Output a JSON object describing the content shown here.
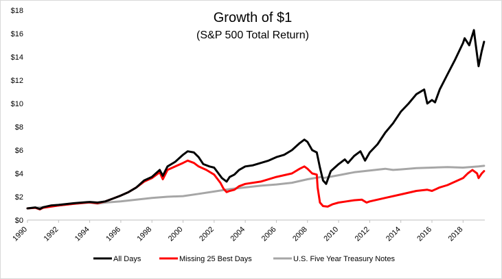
{
  "chart_data": {
    "type": "line",
    "title": "Growth of $1",
    "subtitle": "(S&P 500 Total Return)",
    "xlabel": "",
    "ylabel": "",
    "xlim": [
      1990,
      2019.4
    ],
    "ylim": [
      0,
      18
    ],
    "x_ticks": [
      1990,
      1992,
      1994,
      1996,
      1998,
      2000,
      2002,
      2004,
      2006,
      2008,
      2010,
      2012,
      2014,
      2016,
      2018
    ],
    "x_tick_labels": [
      "1990",
      "1992",
      "1994",
      "1996",
      "1998",
      "2000",
      "2002",
      "2004",
      "2006",
      "2008",
      "2010",
      "2012",
      "2014",
      "2016",
      "2018"
    ],
    "y_ticks": [
      0,
      2,
      4,
      6,
      8,
      10,
      12,
      14,
      16,
      18
    ],
    "y_tick_labels": [
      "$0",
      "$2",
      "$4",
      "$6",
      "$8",
      "$10",
      "$12",
      "$14",
      "$16",
      "$18"
    ],
    "grid": false,
    "legend_position": "bottom",
    "series": [
      {
        "name": "All Days",
        "color": "#000000",
        "x": [
          1990.0,
          1990.5,
          1990.8,
          1991.0,
          1991.5,
          1992.0,
          1993.0,
          1994.0,
          1994.5,
          1995.0,
          1995.5,
          1996.0,
          1996.5,
          1997.0,
          1997.5,
          1998.0,
          1998.5,
          1998.7,
          1999.0,
          1999.5,
          2000.0,
          2000.3,
          2000.7,
          2001.0,
          2001.3,
          2001.7,
          2002.0,
          2002.5,
          2002.8,
          2003.0,
          2003.3,
          2003.6,
          2004.0,
          2004.5,
          2005.0,
          2005.5,
          2006.0,
          2006.5,
          2007.0,
          2007.5,
          2007.8,
          2008.0,
          2008.3,
          2008.6,
          2008.8,
          2009.0,
          2009.2,
          2009.5,
          2010.0,
          2010.4,
          2010.6,
          2011.0,
          2011.4,
          2011.7,
          2012.0,
          2012.5,
          2013.0,
          2013.5,
          2014.0,
          2014.5,
          2015.0,
          2015.5,
          2015.7,
          2016.0,
          2016.2,
          2016.5,
          2017.0,
          2017.5,
          2018.0,
          2018.1,
          2018.4,
          2018.7,
          2018.8,
          2019.0,
          2019.2,
          2019.35
        ],
        "values": [
          1.0,
          1.08,
          0.95,
          1.1,
          1.25,
          1.3,
          1.45,
          1.55,
          1.5,
          1.6,
          1.85,
          2.1,
          2.4,
          2.8,
          3.4,
          3.7,
          4.3,
          3.8,
          4.6,
          5.0,
          5.6,
          5.9,
          5.8,
          5.4,
          4.8,
          4.6,
          4.5,
          3.6,
          3.3,
          3.7,
          3.9,
          4.3,
          4.6,
          4.7,
          4.9,
          5.1,
          5.4,
          5.6,
          6.0,
          6.6,
          6.9,
          6.7,
          6.0,
          5.8,
          4.5,
          3.4,
          3.1,
          4.2,
          4.8,
          5.2,
          4.9,
          5.5,
          5.9,
          5.1,
          5.8,
          6.5,
          7.5,
          8.3,
          9.3,
          10.0,
          10.8,
          11.2,
          10.0,
          10.3,
          10.1,
          11.2,
          12.5,
          13.8,
          15.2,
          15.6,
          15.0,
          16.3,
          15.2,
          13.2,
          14.5,
          15.3
        ]
      },
      {
        "name": "Missing 25 Best Days",
        "color": "#ff0000",
        "x": [
          1990.0,
          1990.5,
          1990.8,
          1991.0,
          1992.0,
          1993.0,
          1994.0,
          1994.5,
          1995.0,
          1995.5,
          1996.0,
          1996.5,
          1997.0,
          1997.5,
          1998.0,
          1998.5,
          1998.7,
          1999.0,
          1999.5,
          2000.0,
          2000.3,
          2000.7,
          2001.0,
          2001.5,
          2002.0,
          2002.4,
          2002.6,
          2002.8,
          2003.0,
          2003.3,
          2003.6,
          2004.0,
          2005.0,
          2006.0,
          2007.0,
          2007.5,
          2007.8,
          2008.0,
          2008.3,
          2008.6,
          2008.65,
          2008.8,
          2009.0,
          2009.3,
          2009.6,
          2010.0,
          2010.5,
          2011.0,
          2011.5,
          2011.8,
          2012.0,
          2013.0,
          2014.0,
          2015.0,
          2015.7,
          2016.0,
          2016.5,
          2017.0,
          2018.0,
          2018.3,
          2018.6,
          2018.9,
          2019.0,
          2019.2,
          2019.35
        ],
        "values": [
          1.0,
          1.05,
          0.92,
          1.05,
          1.25,
          1.4,
          1.52,
          1.45,
          1.6,
          1.85,
          2.1,
          2.4,
          2.8,
          3.3,
          3.6,
          4.1,
          3.5,
          4.3,
          4.6,
          4.9,
          5.1,
          4.9,
          4.6,
          4.3,
          3.9,
          3.2,
          2.7,
          2.4,
          2.5,
          2.6,
          2.9,
          3.1,
          3.3,
          3.7,
          4.0,
          4.4,
          4.6,
          4.4,
          4.0,
          3.9,
          2.8,
          1.5,
          1.2,
          1.15,
          1.35,
          1.5,
          1.6,
          1.7,
          1.75,
          1.5,
          1.6,
          1.9,
          2.2,
          2.5,
          2.6,
          2.5,
          2.8,
          3.0,
          3.6,
          4.0,
          4.3,
          4.0,
          3.6,
          4.0,
          4.2
        ]
      },
      {
        "name": "U.S. Five Year Treasury Notes",
        "color": "#a6a6a6",
        "x": [
          1990.0,
          1991.0,
          1992.0,
          1993.0,
          1994.0,
          1994.5,
          1995.0,
          1996.0,
          1997.0,
          1998.0,
          1999.0,
          2000.0,
          2001.0,
          2002.0,
          2003.0,
          2004.0,
          2005.0,
          2006.0,
          2007.0,
          2008.0,
          2008.9,
          2009.0,
          2010.0,
          2011.0,
          2012.0,
          2013.0,
          2013.5,
          2014.0,
          2015.0,
          2016.0,
          2017.0,
          2018.0,
          2019.0,
          2019.35
        ],
        "values": [
          1.0,
          1.1,
          1.25,
          1.4,
          1.5,
          1.4,
          1.5,
          1.6,
          1.75,
          1.9,
          2.0,
          2.05,
          2.25,
          2.45,
          2.65,
          2.8,
          2.95,
          3.05,
          3.2,
          3.5,
          3.7,
          3.6,
          3.85,
          4.1,
          4.25,
          4.4,
          4.3,
          4.35,
          4.45,
          4.5,
          4.55,
          4.5,
          4.6,
          4.65
        ]
      }
    ]
  }
}
